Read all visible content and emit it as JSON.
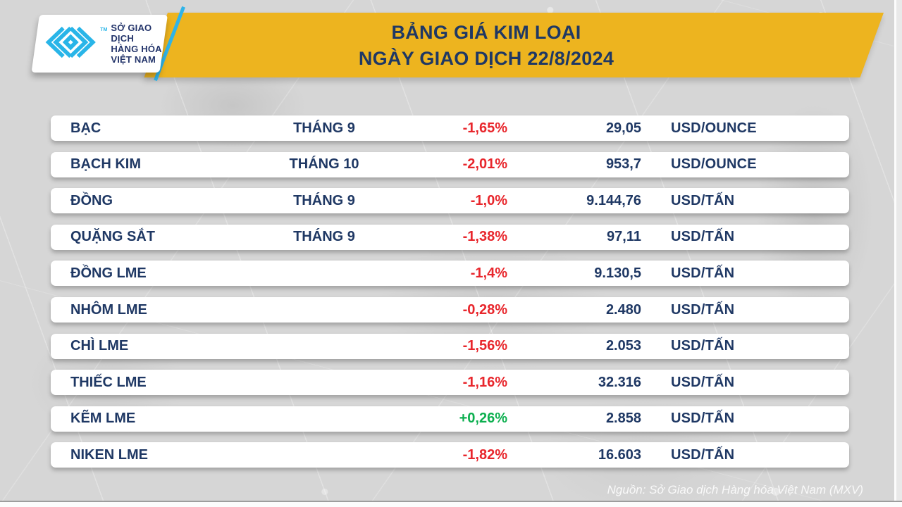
{
  "header": {
    "logo": {
      "icon": "mxv-chevron-diamond-mark",
      "line1": "SỞ GIAO DỊCH",
      "line2": "HÀNG HÓA",
      "line3": "VIỆT NAM",
      "trademark": "TM"
    }
  },
  "chart_data": {
    "type": "table",
    "title": "BẢNG GIÁ KIM LOẠI",
    "subtitle": "NGÀY GIAO DỊCH 22/8/2024",
    "rows": [
      {
        "name": "BẠC",
        "month": "THÁNG 9",
        "change": "-1,65%",
        "direction": "down",
        "price": "29,05",
        "unit": "USD/OUNCE"
      },
      {
        "name": "BẠCH KIM",
        "month": "THÁNG 10",
        "change": "-2,01%",
        "direction": "down",
        "price": "953,7",
        "unit": "USD/OUNCE"
      },
      {
        "name": "ĐỒNG",
        "month": "THÁNG 9",
        "change": "-1,0%",
        "direction": "down",
        "price": "9.144,76",
        "unit": "USD/TẤN"
      },
      {
        "name": "QUẶNG SẮT",
        "month": "THÁNG 9",
        "change": "-1,38%",
        "direction": "down",
        "price": "97,11",
        "unit": "USD/TẤN"
      },
      {
        "name": "ĐỒNG LME",
        "month": "",
        "change": "-1,4%",
        "direction": "down",
        "price": "9.130,5",
        "unit": "USD/TẤN"
      },
      {
        "name": "NHÔM LME",
        "month": "",
        "change": "-0,28%",
        "direction": "down",
        "price": "2.480",
        "unit": "USD/TẤN"
      },
      {
        "name": "CHÌ LME",
        "month": "",
        "change": "-1,56%",
        "direction": "down",
        "price": "2.053",
        "unit": "USD/TẤN"
      },
      {
        "name": "THIẾC LME",
        "month": "",
        "change": "-1,16%",
        "direction": "down",
        "price": "32.316",
        "unit": "USD/TẤN"
      },
      {
        "name": "KẼM LME",
        "month": "",
        "change": "+0,26%",
        "direction": "up",
        "price": "2.858",
        "unit": "USD/TẤN"
      },
      {
        "name": "NIKEN LME",
        "month": "",
        "change": "-1,82%",
        "direction": "down",
        "price": "16.603",
        "unit": "USD/TẤN"
      }
    ]
  },
  "footer": {
    "source": "Nguồn: Sở Giao dịch Hàng hóa Việt Nam (MXV)"
  },
  "colors": {
    "banner_yellow": "#EDB41F",
    "navy": "#1F3864",
    "negative_red": "#E8262C",
    "positive_green": "#0CAF4F",
    "logo_blue": "#29B5E8",
    "row_white": "#FFFFFF",
    "background_gray": "#D6D6D6"
  }
}
